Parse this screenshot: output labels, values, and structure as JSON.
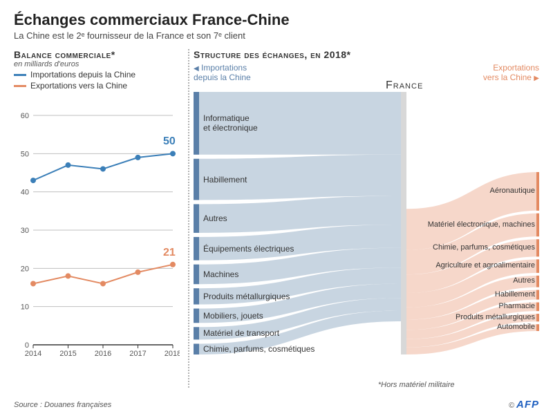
{
  "header": {
    "title": "Échanges commerciaux France-Chine",
    "subtitle": "La Chine est le 2ᵉ fournisseur de la France et son 7ᵉ client"
  },
  "balance_chart": {
    "heading": "Balance commerciale*",
    "unit": "en milliards d'euros",
    "legend": {
      "imports": "Importations depuis la Chine",
      "exports": "Exportations vers la Chine"
    },
    "type": "line",
    "years": [
      "2014",
      "2015",
      "2016",
      "2017",
      "2018"
    ],
    "imports": {
      "values": [
        43,
        47,
        46,
        49,
        50
      ],
      "color": "#3b7fb8",
      "end_label": "50"
    },
    "exports": {
      "values": [
        16,
        18,
        16,
        19,
        21
      ],
      "color": "#e38a62",
      "end_label": "21"
    },
    "ylim": [
      0,
      60
    ],
    "ytick_step": 10,
    "grid_color": "#bfbfbf",
    "axis_color": "#333333",
    "background_color": "#ffffff",
    "line_width": 2,
    "marker_size": 4,
    "label_fontsize": 11,
    "endlabel_fontsize": 16
  },
  "structure_chart": {
    "heading": "Structure des échanges, en 2018*",
    "imports_label": "Importations\ndepuis la Chine",
    "exports_label": "Exportations\nvers la Chine",
    "center_label": "France",
    "type": "sankey",
    "import_color": "#c2d0de",
    "import_stroke": "#5a7fa8",
    "export_color": "#f5d3c4",
    "export_stroke": "#e38a62",
    "note": "*Hors matériel militaire",
    "imports": [
      {
        "label": "Informatique\net électronique",
        "weight": 70
      },
      {
        "label": "Habillement",
        "weight": 46
      },
      {
        "label": "Autres",
        "weight": 32
      },
      {
        "label": "Équipements électriques",
        "weight": 26
      },
      {
        "label": "Machines",
        "weight": 22
      },
      {
        "label": "Produits métallurgiques",
        "weight": 18
      },
      {
        "label": "Mobiliers, jouets",
        "weight": 16
      },
      {
        "label": "Matériel de transport",
        "weight": 14
      },
      {
        "label": "Chimie, parfums, cosmétiques",
        "weight": 12
      }
    ],
    "exports": [
      {
        "label": "Aéronautique",
        "weight": 40
      },
      {
        "label": "Matériel électronique, machines",
        "weight": 24
      },
      {
        "label": "Chimie, parfums, cosmétiques",
        "weight": 18
      },
      {
        "label": "Agriculture et agroalimentaire",
        "weight": 14
      },
      {
        "label": "Autres",
        "weight": 12
      },
      {
        "label": "Habillement",
        "weight": 10
      },
      {
        "label": "Pharmacie",
        "weight": 9
      },
      {
        "label": "Produits métallurgiques",
        "weight": 8
      },
      {
        "label": "Automobile",
        "weight": 7
      }
    ]
  },
  "footer": {
    "source": "Source : Douanes françaises",
    "copyright": "©",
    "brand": "AFP"
  }
}
